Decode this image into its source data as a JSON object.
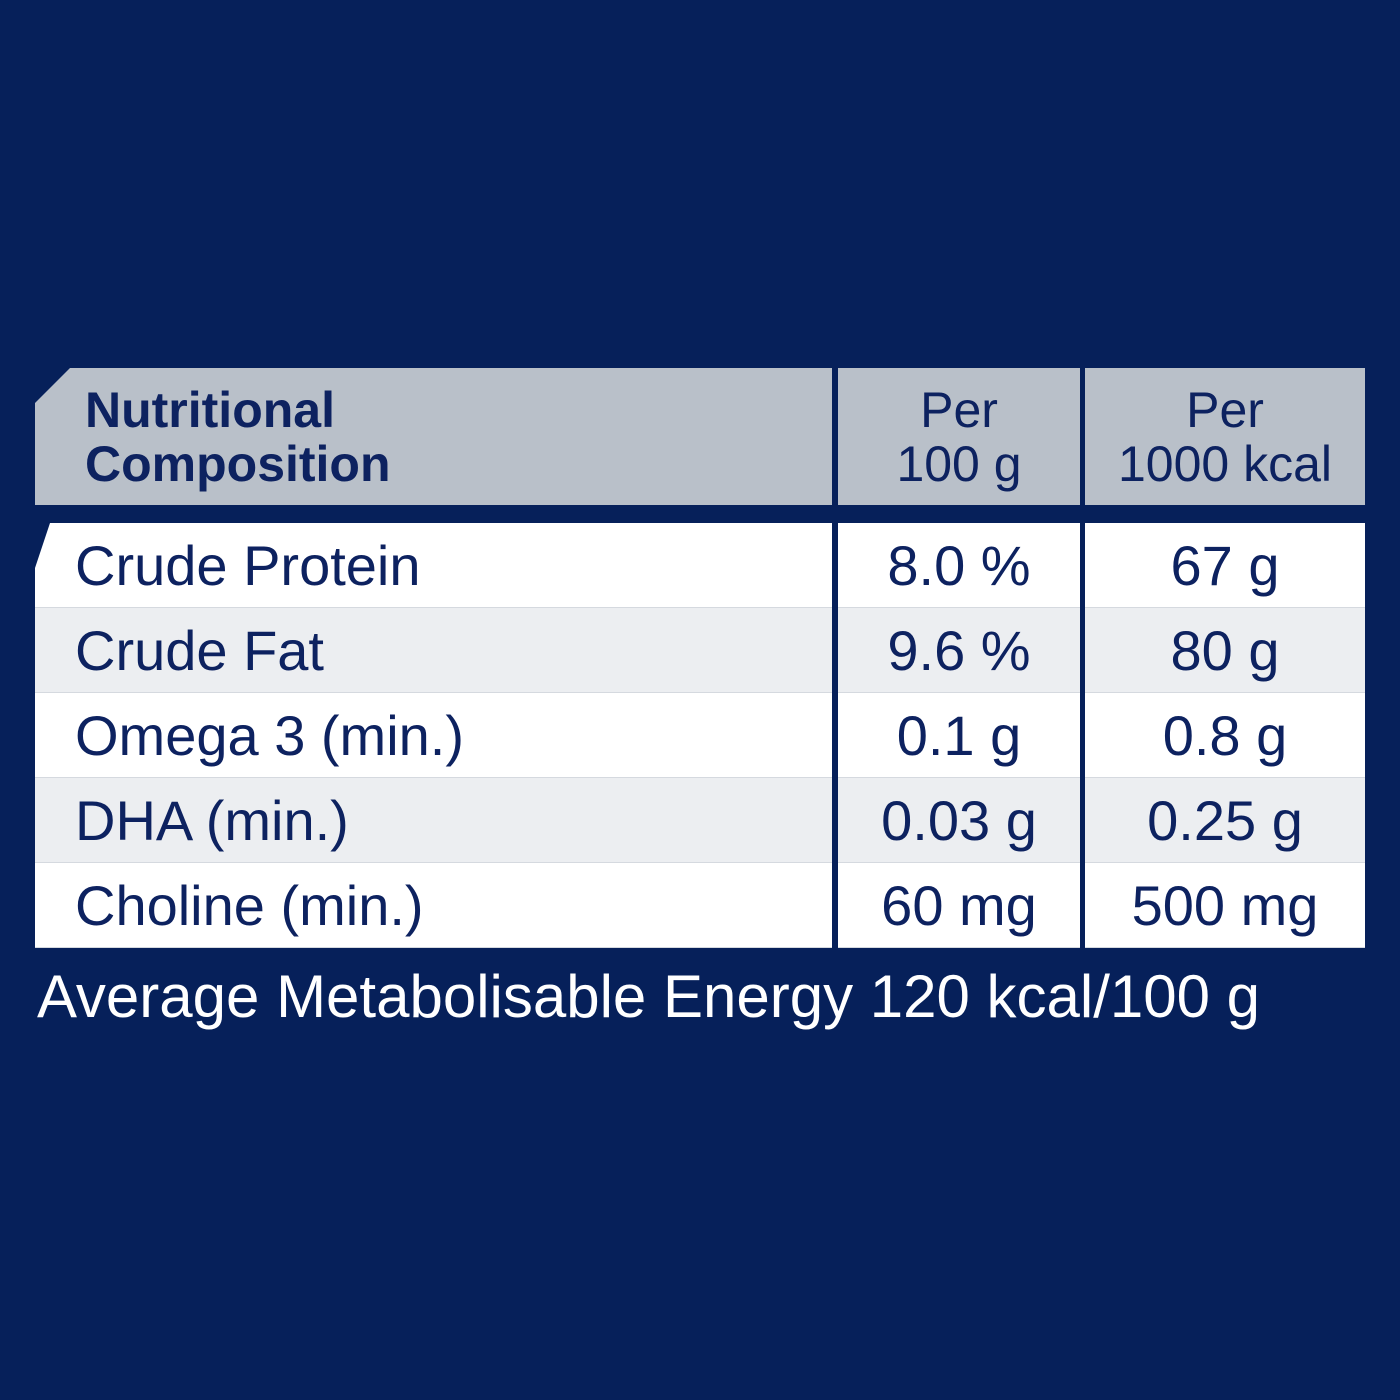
{
  "table": {
    "header": [
      [
        "Nutritional",
        "Composition"
      ],
      [
        "Per",
        "100 g"
      ],
      [
        "Per",
        "1000 kcal"
      ]
    ],
    "rows": [
      [
        "Crude Protein",
        "8.0 %",
        "67 g"
      ],
      [
        "Crude Fat",
        "9.6 %",
        "80 g"
      ],
      [
        "Omega 3 (min.)",
        "0.1 g",
        "0.8 g"
      ],
      [
        "DHA (min.)",
        "0.03 g",
        "0.25 g"
      ],
      [
        "Choline (min.)",
        "60 mg",
        "500 mg"
      ]
    ]
  },
  "footer": "Average Metabolisable Energy 120 kcal/100 g"
}
